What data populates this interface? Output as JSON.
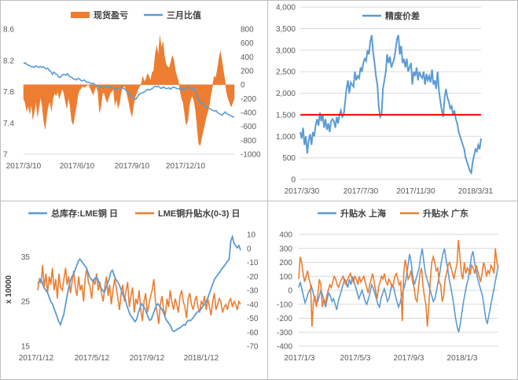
{
  "colors": {
    "blue": "#5b9bd5",
    "orange": "#ed7d31",
    "red": "#ff0000",
    "grid": "#d9d9d9",
    "frame": "#bfbfbf",
    "text": "#595959"
  },
  "chart_data": [
    {
      "id": "chart1",
      "type": "area",
      "series": [
        {
          "name": "现货盈亏",
          "kind": "area",
          "axis": "right",
          "color": "#ed7d31",
          "values": [
            -200,
            -260,
            -380,
            -300,
            -420,
            -280,
            -500,
            -380,
            -240,
            -460,
            -320,
            -180,
            -300,
            -520,
            -640,
            -420,
            -300,
            -240,
            -380,
            -200,
            -120,
            -160,
            -100,
            -200,
            -130,
            -60,
            -120,
            -240,
            -340,
            -180,
            -300,
            -520,
            -580,
            -450,
            -320,
            -160,
            -80,
            -60,
            -20,
            -40,
            -30,
            -10,
            0,
            -50,
            -100,
            -150,
            -60,
            -30,
            -100,
            -400,
            -300,
            -120,
            -120,
            -200,
            -260,
            -180,
            -120,
            -100,
            -60,
            -300,
            -200,
            -340,
            -260,
            -100,
            -40,
            -20,
            -60,
            -160,
            -260,
            -380,
            -460,
            -300,
            -180,
            -120,
            -60,
            -20,
            20,
            120,
            40,
            80,
            160,
            120,
            60,
            180,
            200,
            440,
            560,
            420,
            700,
            520,
            620,
            400,
            300,
            260,
            240,
            320,
            420,
            360,
            200,
            120,
            40,
            -80,
            -200,
            -260,
            -420,
            -580,
            -520,
            -300,
            -200,
            -160,
            -240,
            -360,
            -600,
            -840,
            -880,
            -760,
            -660,
            -560,
            -460,
            -380,
            -280,
            -140,
            -20,
            120,
            100,
            200,
            360,
            480,
            360,
            200,
            60,
            -100,
            -200,
            -260,
            -320,
            -260,
            -200
          ]
        },
        {
          "name": "三月比值",
          "kind": "line",
          "axis": "left",
          "color": "#5b9bd5",
          "values": [
            8.16,
            8.17,
            8.15,
            8.14,
            8.13,
            8.12,
            8.12,
            8.11,
            8.13,
            8.12,
            8.11,
            8.12,
            8.11,
            8.12,
            8.1,
            8.09,
            8.1,
            8.07,
            8.06,
            8.02,
            8.05,
            8.03,
            8.02,
            7.99,
            7.98,
            8.0,
            8.02,
            8.02,
            8.01,
            8.03,
            8.0,
            7.99,
            7.98,
            7.96,
            7.96,
            7.95,
            7.97,
            7.96,
            7.94,
            7.94,
            7.95,
            7.93,
            7.92,
            7.92,
            7.91,
            7.9,
            7.91,
            7.89,
            7.88,
            7.87,
            7.86,
            7.86,
            7.85,
            7.86,
            7.86,
            7.87,
            7.86,
            7.85,
            7.85,
            7.86,
            7.84,
            7.83,
            7.83,
            7.84,
            7.85,
            7.86,
            7.84,
            7.83,
            7.81,
            7.79,
            7.76,
            7.74,
            7.72,
            7.71,
            7.7,
            7.73,
            7.76,
            7.78,
            7.78,
            7.79,
            7.8,
            7.82,
            7.83,
            7.82,
            7.83,
            7.84,
            7.86,
            7.87,
            7.86,
            7.87,
            7.85,
            7.84,
            7.86,
            7.85,
            7.84,
            7.84,
            7.85,
            7.83,
            7.85,
            7.86,
            7.85,
            7.84,
            7.84,
            7.83,
            7.84,
            7.82,
            7.84,
            7.84,
            7.85,
            7.86,
            7.84,
            7.83,
            7.85,
            7.82,
            7.78,
            7.73,
            7.68,
            7.65,
            7.66,
            7.62,
            7.61,
            7.6,
            7.59,
            7.58,
            7.57,
            7.56,
            7.55,
            7.56,
            7.53,
            7.52,
            7.51,
            7.5,
            7.52,
            7.54,
            7.52,
            7.51,
            7.5,
            7.49,
            7.48,
            7.47
          ]
        }
      ],
      "left_axis": {
        "ticks": [
          "8.6",
          "8.2",
          "7.8",
          "7.4",
          "7"
        ],
        "ylim": [
          7,
          8.6
        ]
      },
      "right_axis": {
        "ticks": [
          "800",
          "600",
          "400",
          "200",
          "0",
          "-200",
          "-400",
          "-600",
          "-800",
          "-1000"
        ],
        "ylim": [
          -1000,
          800
        ]
      },
      "x_ticks": [
        "2017/3/10",
        "2017/6/10",
        "2017/9/10",
        "2017/12/10"
      ]
    },
    {
      "id": "chart2",
      "type": "line",
      "series": [
        {
          "name": "精废价差",
          "color": "#5b9bd5",
          "values": [
            1100,
            950,
            1200,
            800,
            1000,
            600,
            900,
            1050,
            800,
            1100,
            1000,
            1250,
            1400,
            1250,
            1550,
            1350,
            1500,
            1200,
            1400,
            1150,
            1300,
            1100,
            1350,
            1400,
            1350,
            1200,
            1450,
            1300,
            1500,
            1600,
            1450,
            1500,
            1800,
            2100,
            2300,
            2000,
            2250,
            2200,
            2150,
            2500,
            2300,
            2400,
            2350,
            2600,
            2500,
            2700,
            2800,
            2750,
            3000,
            2900,
            3200,
            3350,
            2950,
            2700,
            2400,
            2200,
            1700,
            1450,
            1500,
            2100,
            2300,
            2500,
            2900,
            2700,
            2850,
            2600,
            2700,
            2800,
            3000,
            3250,
            3350,
            2900,
            3100,
            2700,
            2800,
            2600,
            2800,
            2500,
            2600,
            2700,
            2200,
            2500,
            2400,
            2600,
            2300,
            2500,
            2400,
            2350,
            2500,
            2200,
            2450,
            2300,
            2400,
            2250,
            2550,
            2200,
            2300,
            2100,
            2500,
            2050,
            1800,
            1600,
            1450,
            1900,
            2100,
            1900,
            1800,
            1650,
            1700,
            1500,
            1600,
            1400,
            1300,
            1100,
            1000,
            900,
            800,
            700,
            500,
            400,
            300,
            200,
            150,
            400,
            550,
            700,
            650,
            800,
            700,
            950
          ]
        }
      ],
      "reference_line": {
        "value": 1500,
        "color": "#ff0000"
      },
      "y_ticks": [
        "4,000",
        "3,500",
        "3,000",
        "2,500",
        "2,000",
        "1,500",
        "1,000",
        "500",
        "0"
      ],
      "ylim": [
        0,
        4000
      ],
      "x_ticks": [
        "2017/3/30",
        "2017/7/30",
        "2017/11/30",
        "2018/3/31"
      ]
    },
    {
      "id": "chart3",
      "type": "line",
      "ylabel": "x 10000",
      "series": [
        {
          "name": "总库存:LME铜 日",
          "axis": "left",
          "color": "#5b9bd5",
          "values": [
            29,
            29.5,
            30,
            29,
            28,
            27.5,
            27,
            26,
            25,
            24.5,
            23.5,
            22.5,
            21.5,
            20.5,
            19.8,
            21,
            22,
            24,
            26,
            28,
            29.5,
            30.5,
            31,
            32,
            33,
            34,
            34.5,
            34,
            33.5,
            33,
            32.5,
            31.5,
            30.5,
            30,
            29.5,
            30,
            30.5,
            30,
            29,
            28,
            27.5,
            27,
            28,
            29,
            30,
            31.5,
            32,
            31,
            30,
            29.5,
            29,
            28,
            27,
            26,
            25.5,
            24,
            23,
            22,
            21.5,
            21,
            20.5,
            21,
            22.5,
            23.5,
            24.5,
            24,
            23.5,
            22.5,
            21.5,
            20.8,
            21,
            22,
            23,
            24,
            24.5,
            24,
            23.5,
            23,
            22,
            21,
            20.5,
            20,
            19.5,
            18.5,
            18.3,
            18.5,
            18.8,
            19,
            19.2,
            19.5,
            19.8,
            19.7,
            20.5,
            20.8,
            20.7,
            21,
            21.5,
            22,
            22.5,
            22.8,
            23,
            23.5,
            24,
            24.5,
            25,
            26,
            27,
            28,
            29,
            30,
            30.5,
            31,
            31.5,
            32,
            32.5,
            33,
            33.5,
            34,
            34.5,
            38.5,
            39.5,
            38,
            37.5,
            37,
            37.5,
            36.5
          ]
        },
        {
          "name": "LME铜升贴水(0-3) 日",
          "axis": "right",
          "color": "#ed7d31",
          "values": [
            -30,
            -22,
            -25,
            -12,
            -28,
            -18,
            -32,
            -20,
            -26,
            -14,
            -30,
            -22,
            -36,
            -18,
            -28,
            -30,
            -22,
            -14,
            -26,
            -20,
            -32,
            -24,
            -16,
            -28,
            -34,
            -20,
            -30,
            -26,
            -38,
            -22,
            -14,
            -24,
            -28,
            -36,
            -22,
            -26,
            -18,
            -30,
            -24,
            -32,
            -38,
            -28,
            -20,
            -34,
            -26,
            -40,
            -30,
            -22,
            -28,
            -36,
            -44,
            -32,
            -26,
            -38,
            -30,
            -24,
            -42,
            -34,
            -28,
            -46,
            -36,
            -40,
            -30,
            -44,
            -52,
            -38,
            -32,
            -46,
            -40,
            -34,
            -30,
            -22,
            -38,
            -46,
            -54,
            -40,
            -34,
            -44,
            -48,
            -36,
            -42,
            -30,
            -38,
            -44,
            -36,
            -40,
            -46,
            -34,
            -30,
            -38,
            -42,
            -50,
            -36,
            -32,
            -40,
            -44,
            -38,
            -34,
            -42,
            -46,
            -38,
            -40,
            -34,
            -44,
            -36,
            -42,
            -48,
            -38,
            -32,
            -44,
            -40,
            -36,
            -38,
            -46,
            -42,
            -40,
            -44,
            -38,
            -36,
            -42,
            -38,
            -40,
            -44,
            -38,
            -40
          ]
        }
      ],
      "left_axis": {
        "ticks": [
          "35",
          "25",
          "15"
        ],
        "ylim": [
          15,
          40
        ]
      },
      "right_axis": {
        "ticks": [
          "10",
          "0",
          "-10",
          "-20",
          "-30",
          "-40",
          "-50",
          "-60",
          "-70"
        ],
        "ylim": [
          -70,
          10
        ]
      },
      "x_ticks": [
        "2017/1/12",
        "2017/5/12",
        "2017/9/12",
        "2018/1/12"
      ]
    },
    {
      "id": "chart4",
      "type": "line",
      "series": [
        {
          "name": "升贴水 上海",
          "color": "#5b9bd5",
          "values": [
            20,
            60,
            10,
            -40,
            -90,
            -60,
            -20,
            0,
            30,
            -10,
            -60,
            -100,
            -80,
            -40,
            0,
            -30,
            -80,
            -120,
            -60,
            -20,
            -40,
            -80,
            -60,
            -100,
            -140,
            -80,
            -40,
            0,
            40,
            80,
            60,
            20,
            80,
            40,
            100,
            60,
            20,
            -20,
            -60,
            -30,
            0,
            -40,
            -80,
            -100,
            -60,
            -20,
            40,
            20,
            -20,
            -60,
            -100,
            -120,
            -60,
            -20,
            10,
            -30,
            -80,
            -60,
            0,
            40,
            20,
            -40,
            -80,
            -120,
            -90,
            -40,
            0,
            40,
            100,
            180,
            260,
            200,
            100,
            40,
            80,
            120,
            160,
            240,
            300,
            200,
            120,
            80,
            40,
            0,
            -40,
            -80,
            -60,
            0,
            60,
            120,
            200,
            260,
            300,
            220,
            160,
            80,
            20,
            -40,
            -120,
            -200,
            -260,
            -300,
            -240,
            -160,
            -80,
            -20,
            40,
            80,
            160,
            240,
            280,
            200,
            140,
            80,
            40,
            0,
            -40,
            -120,
            -200,
            -240,
            -180,
            -120,
            -60,
            0,
            60,
            120,
            180
          ]
        },
        {
          "name": "升贴水 广东",
          "color": "#ed7d31",
          "values": [
            80,
            240,
            200,
            120,
            60,
            100,
            140,
            80,
            40,
            -260,
            -80,
            -40,
            -120,
            -20,
            80,
            40,
            -120,
            -60,
            -100,
            -40,
            0,
            40,
            20,
            60,
            100,
            80,
            40,
            20,
            60,
            80,
            100,
            60,
            40,
            80,
            100,
            120,
            80,
            60,
            100,
            80,
            40,
            100,
            60,
            80,
            100,
            60,
            20,
            -20,
            40,
            80,
            120,
            60,
            0,
            -60,
            20,
            60,
            100,
            80,
            120,
            60,
            40,
            80,
            60,
            20,
            40,
            100,
            120,
            80,
            40,
            60,
            -220,
            120,
            220,
            160,
            80,
            100,
            140,
            60,
            20,
            -60,
            -80,
            20,
            120,
            160,
            40,
            -40,
            -100,
            -260,
            -100,
            80,
            200,
            240,
            200,
            140,
            160,
            60,
            40,
            -80,
            -40,
            80,
            120,
            180,
            200,
            160,
            120,
            80,
            140,
            180,
            360,
            240,
            120,
            80,
            200,
            120,
            160,
            140,
            120,
            180,
            160,
            120,
            180,
            140,
            100,
            60,
            120,
            200,
            160,
            100,
            140,
            120,
            180,
            160,
            120,
            300,
            200,
            160
          ]
        }
      ],
      "y_ticks": [
        "400",
        "300",
        "200",
        "100",
        "0",
        "-100",
        "-200",
        "-300",
        "-400"
      ],
      "ylim": [
        -400,
        400
      ],
      "x_ticks": [
        "2017/1/3",
        "2017/5/3",
        "2017/9/3",
        "2018/1/3"
      ]
    }
  ]
}
